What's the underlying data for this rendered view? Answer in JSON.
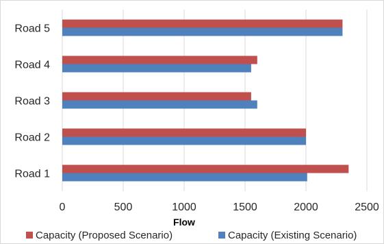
{
  "chart_data": {
    "type": "bar",
    "orientation": "horizontal",
    "categories": [
      "Road 1",
      "Road 2",
      "Road 3",
      "Road 4",
      "Road 5"
    ],
    "series": [
      {
        "name": "Capacity (Proposed Scenario)",
        "color": "#c0504d",
        "values": [
          2350,
          2000,
          1550,
          1600,
          2300
        ]
      },
      {
        "name": "Capacity (Existing Scenario)",
        "color": "#4f81bd",
        "values": [
          2010,
          2000,
          1600,
          1550,
          2300
        ]
      }
    ],
    "title": "",
    "xlabel": "Flow",
    "ylabel": "",
    "xlim": [
      0,
      2500
    ],
    "xticks": [
      "0",
      "500",
      "1000",
      "1500",
      "2000",
      "2500"
    ],
    "grid": "vertical",
    "legend": "bottom",
    "colors": {
      "gridline": "#d9d9d9",
      "border": "#d9d9d9"
    }
  }
}
